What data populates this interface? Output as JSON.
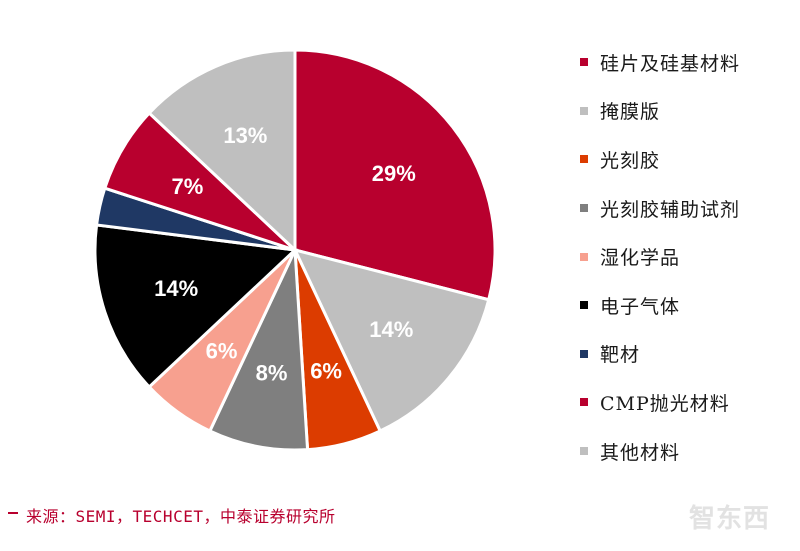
{
  "chart_data": {
    "type": "pie",
    "title": "",
    "start": "12 o'clock",
    "direction": "clockwise",
    "slices": [
      {
        "name": "硅片及硅基材料",
        "value": 29,
        "label": "29%",
        "color": "#b8002e",
        "label_color": "#ffffff"
      },
      {
        "name": "其他材料",
        "value": 14,
        "label": "14%",
        "color": "#bfbfbf",
        "label_color": "#ffffff"
      },
      {
        "name": "光刻胶",
        "value": 6,
        "label": "6%",
        "color": "#dc3c00",
        "label_color": "#ffffff"
      },
      {
        "name": "光刻胶辅助试剂",
        "value": 8,
        "label": "8%",
        "color": "#7f7f7f",
        "label_color": "#ffffff"
      },
      {
        "name": "湿化学品",
        "value": 6,
        "label": "6%",
        "color": "#f7a08f",
        "label_color": "#ffffff"
      },
      {
        "name": "电子气体",
        "value": 14,
        "label": "14%",
        "color": "#000000",
        "label_color": "#ffffff"
      },
      {
        "name": "靶材",
        "value": 3,
        "label": "",
        "color": "#1f3864",
        "label_color": "#ffffff"
      },
      {
        "name": "CMP抛光材料",
        "value": 7,
        "label": "7%",
        "color": "#b8002e",
        "label_color": "#ffffff"
      },
      {
        "name": "掩膜版",
        "value": 13,
        "label": "13%",
        "color": "#bfbfbf",
        "label_color": "#ffffff"
      }
    ],
    "legend": {
      "placement": "right",
      "items": [
        {
          "label": "硅片及硅基材料",
          "color": "#b8002e"
        },
        {
          "label": "掩膜版",
          "color": "#bfbfbf"
        },
        {
          "label": "光刻胶",
          "color": "#dc3c00"
        },
        {
          "label": "光刻胶辅助试剂",
          "color": "#7f7f7f"
        },
        {
          "label": "湿化学品",
          "color": "#f7a08f"
        },
        {
          "label": "电子气体",
          "color": "#000000"
        },
        {
          "label": "靶材",
          "color": "#1f3864"
        },
        {
          "label": "CMP抛光材料",
          "color": "#b8002e"
        },
        {
          "label": "其他材料",
          "color": "#bfbfbf"
        }
      ]
    }
  },
  "source": {
    "text": "来源：SEMI，TECHCET，中泰证券研究所",
    "color": "#b8002e"
  },
  "watermark": {
    "text": "智东西"
  }
}
